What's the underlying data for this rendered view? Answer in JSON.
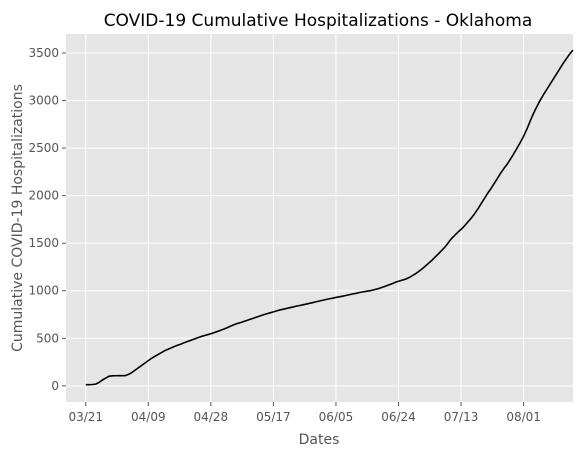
{
  "chart_data": {
    "type": "line",
    "title": "COVID-19 Cumulative Hospitalizations - Oklahoma",
    "xlabel": "Dates",
    "ylabel": "Cumulative COVID-19 Hospitalizations",
    "x_tick_labels": [
      "03/21",
      "04/09",
      "04/28",
      "05/17",
      "06/05",
      "06/24",
      "07/13",
      "08/01"
    ],
    "y_ticks": [
      0,
      500,
      1000,
      1500,
      2000,
      2500,
      3000,
      3500
    ],
    "ylim": [
      -170,
      3700
    ],
    "xlim_days": [
      -6,
      148
    ],
    "grid": true,
    "style": "ggplot",
    "colors": {
      "background": "#e5e5e5",
      "grid": "#ffffff",
      "line": "#000000"
    },
    "series": [
      {
        "x_start": "03/21",
        "x_step_days": 1,
        "values": [
          12,
          12,
          14,
          18,
          35,
          60,
          80,
          100,
          105,
          106,
          107,
          107,
          108,
          120,
          140,
          165,
          190,
          215,
          240,
          265,
          290,
          310,
          330,
          350,
          370,
          385,
          400,
          415,
          428,
          440,
          455,
          468,
          480,
          492,
          505,
          518,
          528,
          538,
          548,
          560,
          572,
          585,
          598,
          612,
          628,
          642,
          655,
          665,
          676,
          688,
          700,
          712,
          724,
          736,
          748,
          758,
          768,
          778,
          788,
          798,
          806,
          814,
          822,
          830,
          838,
          845,
          852,
          860,
          868,
          876,
          884,
          892,
          900,
          908,
          916,
          922,
          930,
          936,
          943,
          950,
          958,
          966,
          972,
          980,
          987,
          993,
          998,
          1005,
          1014,
          1024,
          1035,
          1047,
          1060,
          1073,
          1088,
          1100,
          1110,
          1120,
          1135,
          1155,
          1175,
          1200,
          1225,
          1255,
          1285,
          1315,
          1350,
          1385,
          1420,
          1455,
          1500,
          1545,
          1580,
          1615,
          1645,
          1680,
          1720,
          1760,
          1805,
          1855,
          1910,
          1965,
          2020,
          2070,
          2125,
          2180,
          2235,
          2285,
          2330,
          2385,
          2440,
          2500,
          2560,
          2625,
          2700,
          2785,
          2865,
          2935,
          3000,
          3060,
          3115,
          3170,
          3225,
          3280,
          3335,
          3390,
          3440,
          3490,
          3530
        ]
      }
    ]
  }
}
